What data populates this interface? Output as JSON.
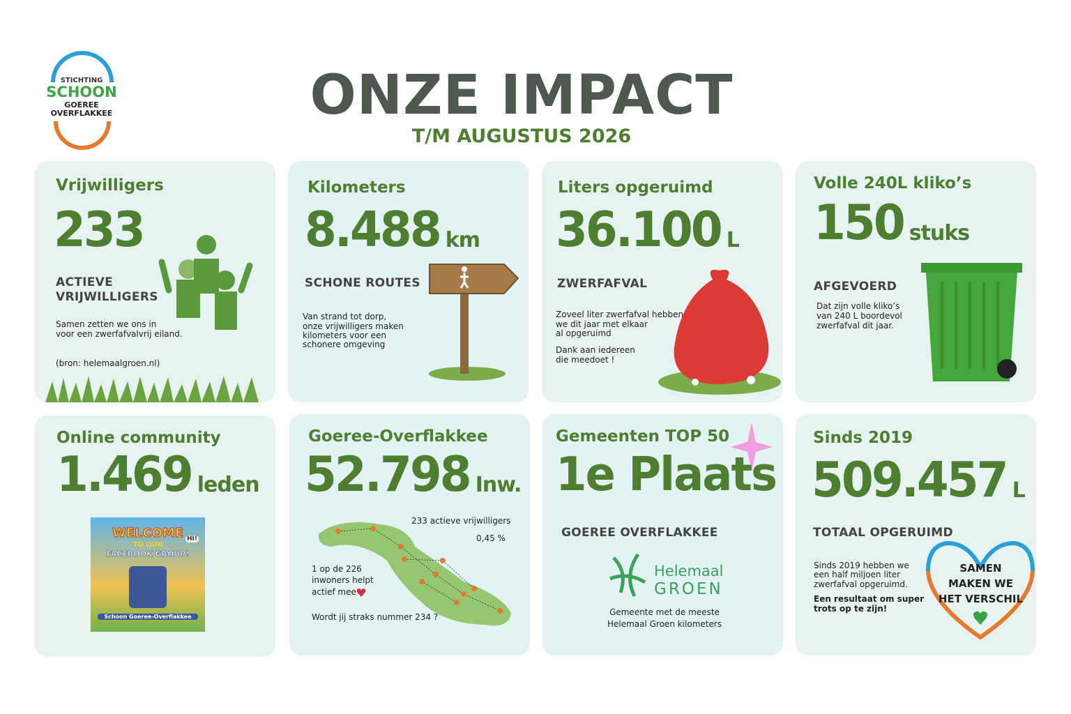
{
  "logo": {
    "line1": "STICHTING",
    "line2": "SCHOON",
    "line3": "GOEREE",
    "line4": "OVERFLAKKEE"
  },
  "header": {
    "title": "ONZE IMPACT",
    "subtitle": "T/M AUGUSTUS 2026"
  },
  "cards": [
    {
      "heading": "Vrijwilligers",
      "value": "233",
      "label": [
        "ACTIEVE",
        "VRIJWILLIGERS"
      ],
      "body": [
        "Samen zetten we ons in",
        "voor een zwerfafvalvrij eiland."
      ],
      "source": "(bron: helemaalgroen.nl)"
    },
    {
      "heading": "Kilometers",
      "value": "8.488",
      "unit": "km",
      "label": [
        "SCHONE ROUTES"
      ],
      "body": [
        "Van strand tot dorp,",
        "onze vrijwilligers maken",
        "kilometers voor een",
        "schonere omgeving"
      ]
    },
    {
      "heading": "Liters opgeruimd",
      "value": "36.100",
      "unit": "L",
      "label": [
        "ZWERFAFVAL"
      ],
      "body": [
        "Zoveel liter zwerfafval hebben",
        "we dit jaar met elkaar",
        "al opgeruimd"
      ],
      "body2": [
        "Dank aan iedereen",
        "die meedoet !"
      ]
    },
    {
      "heading": "Volle 240L kliko’s",
      "value": "150",
      "unit": "stuks",
      "label": [
        "AFGEVOERD"
      ],
      "body": [
        "Dat zijn volle kliko’s",
        "van 240 L boordevol",
        "zwerfafval dit jaar."
      ]
    },
    {
      "heading": "Online community",
      "value": "1.469",
      "unit": "leden",
      "image": [
        "WELCOME",
        "TO OUR",
        "FACEBOOK GROUP!",
        "HI!",
        "Schoon Goeree-Overflakkee"
      ]
    },
    {
      "heading": "Goeree-Overflakkee",
      "value": "52.798",
      "unit": "Inw.",
      "note1": "233 actieve vrijwilligers",
      "note2": "0,45 %",
      "body": [
        "1 op de 226",
        "inwoners helpt",
        "actief mee"
      ],
      "question": "Wordt jij straks nummer 234 ?"
    },
    {
      "heading": "Gemeenten TOP 50",
      "value": "1e Plaats",
      "label": [
        "GOEREE OVERFLAKKEE"
      ],
      "logo": [
        "Helemaal",
        "GROEN"
      ],
      "body": [
        "Gemeente met de meeste",
        "Helemaal Groen kilometers"
      ]
    },
    {
      "heading": "Sinds 2019",
      "value": "509.457",
      "unit": "L",
      "label": [
        "TOTAAL OPGERUIMD"
      ],
      "body": [
        "Sinds 2019 hebben we",
        "een half miljoen liter",
        "zwerfafval opgeruimd."
      ],
      "bold": [
        "Een resultaat om super",
        "trots op te zijn!"
      ],
      "heart": [
        "SAMEN",
        "MAKEN WE",
        "HET VERSCHIL"
      ]
    }
  ]
}
